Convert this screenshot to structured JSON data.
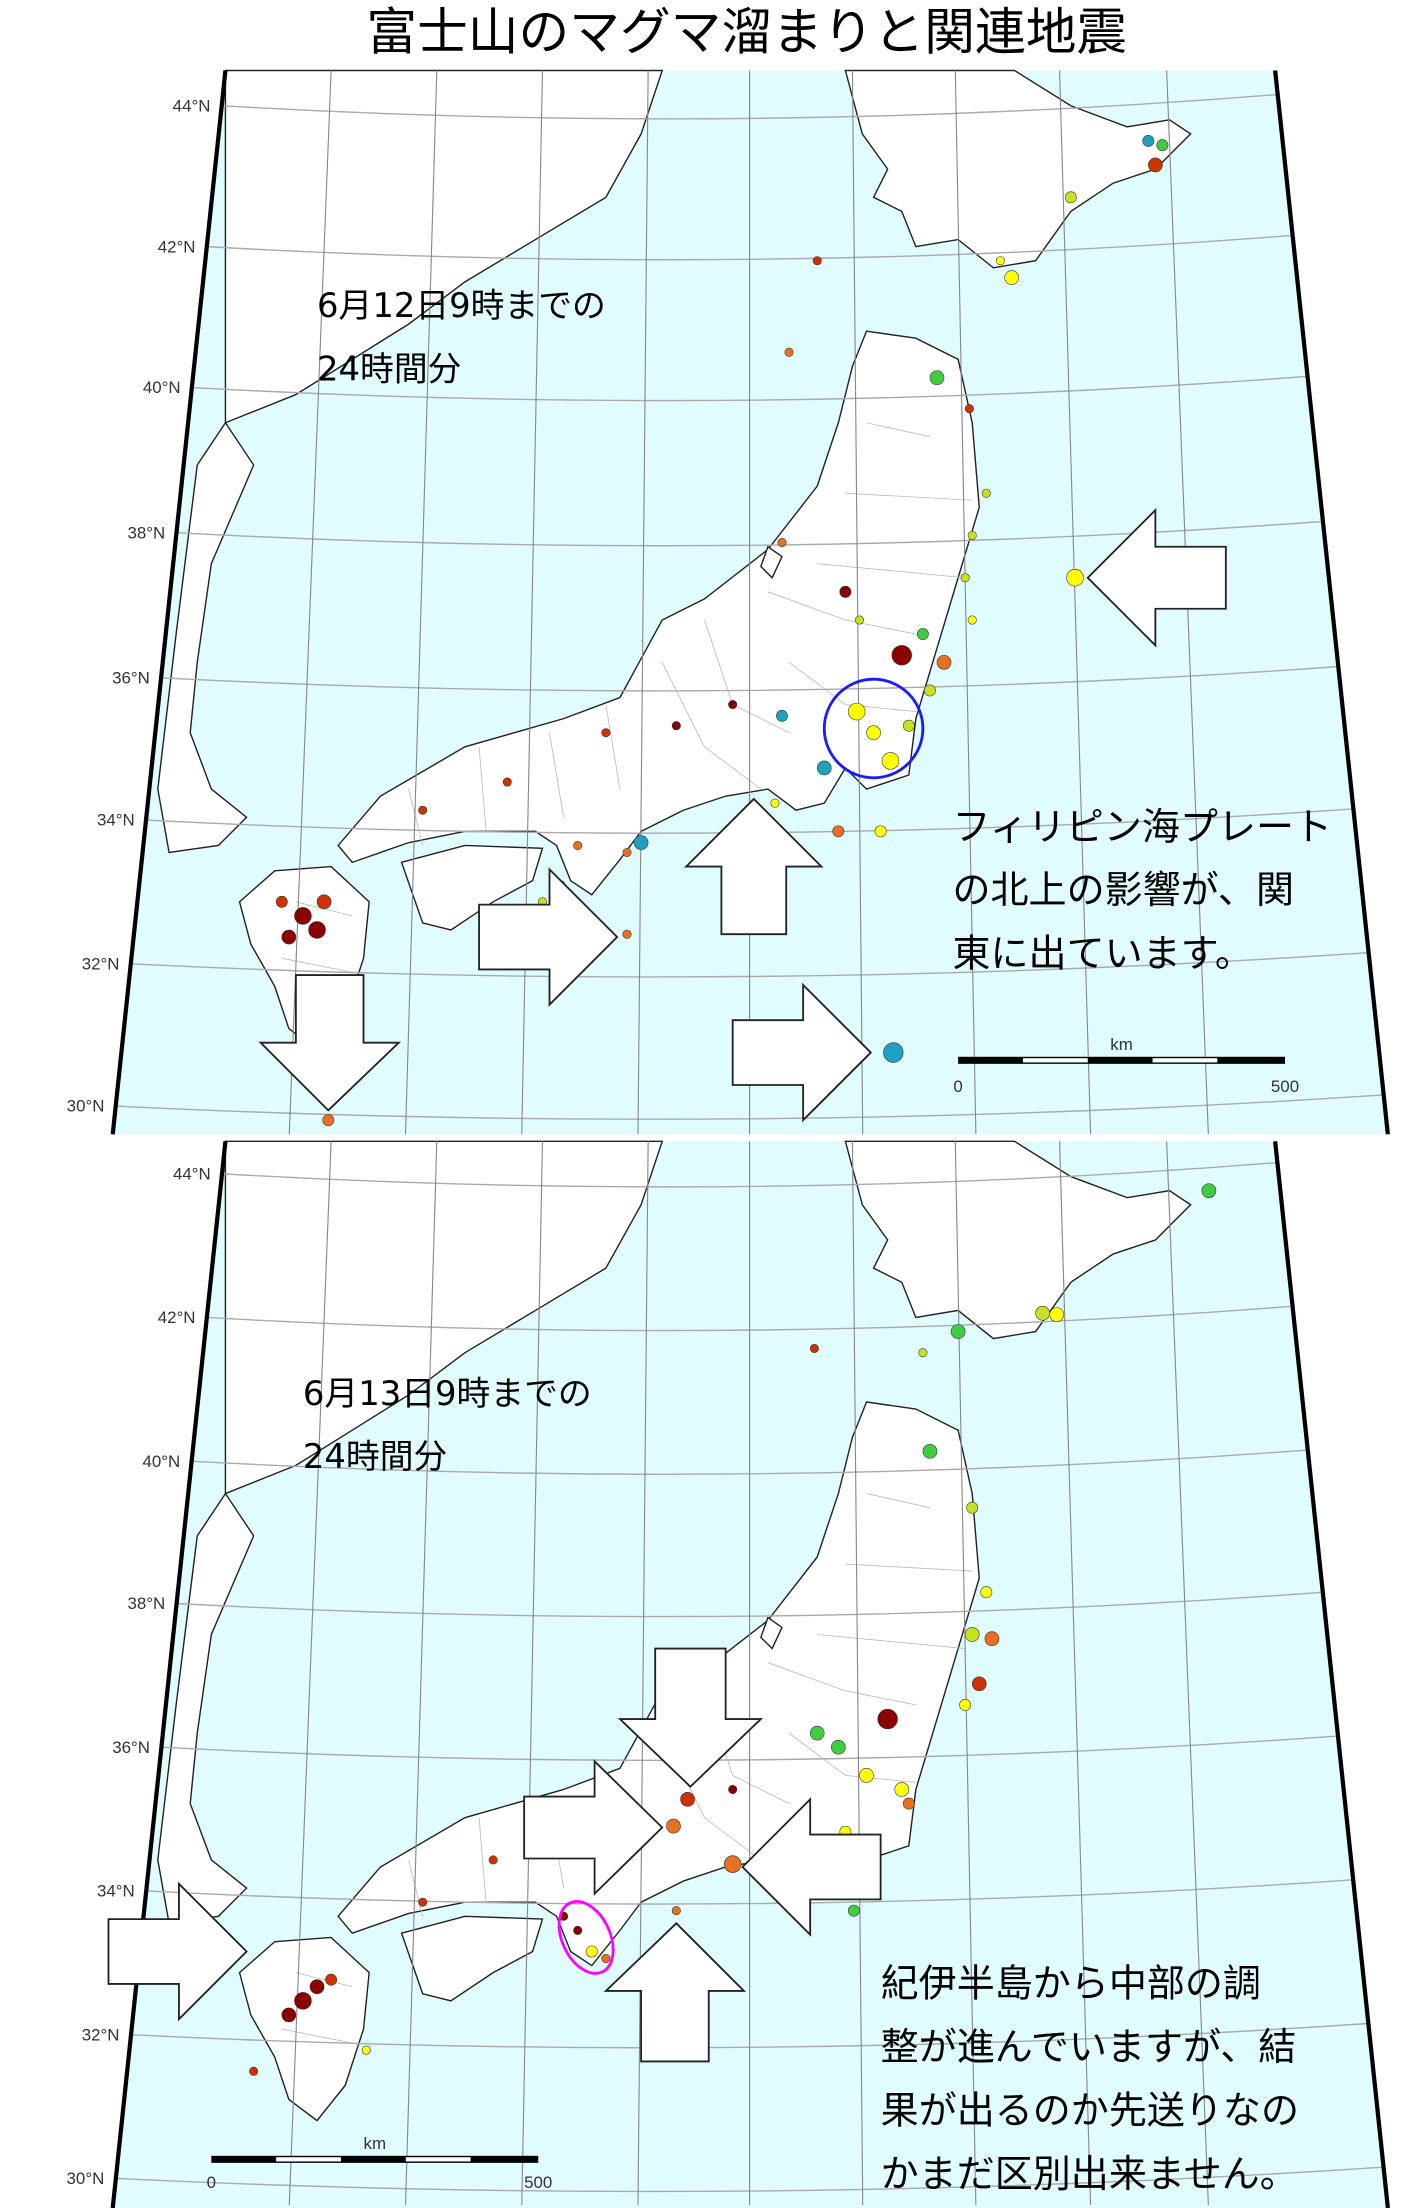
{
  "title": "富士山のマグマ溜まりと関連地震",
  "latitude_labels": [
    "44°N",
    "42°N",
    "40°N",
    "38°N",
    "36°N",
    "34°N",
    "32°N",
    "30°N"
  ],
  "colors": {
    "sea": "#e0fcfe",
    "land": "#ffffff",
    "circle_kanto": "#1a1aff",
    "ellipse_kii": "#ff00ff"
  },
  "map1": {
    "period_line1": "6月12日9時までの",
    "period_line2": "24時間分",
    "note_lines": [
      "フィリピン海プレート",
      "の北上の影響が、関",
      "東に出ています。"
    ],
    "scale": {
      "unit": "km",
      "min": "0",
      "max": "500"
    }
  },
  "map2": {
    "period_line1": "6月13日9時までの",
    "period_line2": "24時間分",
    "note_lines": [
      "紀伊半島から中部の調",
      "整が進んでいますが、結",
      "果が出るのか先送りなの",
      "かまだ区別出来ません。"
    ],
    "scale": {
      "unit": "km",
      "min": "0",
      "max": "500"
    }
  },
  "quake_colors": [
    "#8b0000",
    "#cc3300",
    "#e87020",
    "#ffff00",
    "#c8e020",
    "#40cc40",
    "#20a0c0"
  ]
}
